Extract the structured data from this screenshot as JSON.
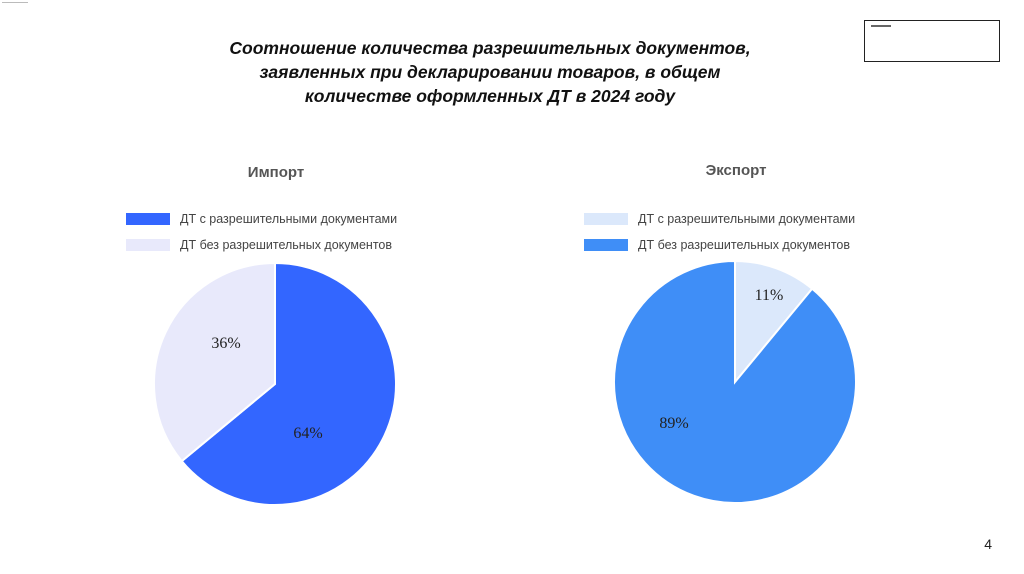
{
  "title_lines": [
    "Соотношение количества разрешительных документов,",
    "заявленных при декларировании товаров, в общем",
    "количестве оформленных ДТ в 2024 году"
  ],
  "page_number": "4",
  "chart_data": [
    {
      "type": "pie",
      "title": "Импорт",
      "legend_position": "top",
      "labels": [
        "ДТ с разрешительными документами",
        "ДТ без разрешительных документов"
      ],
      "values": [
        64,
        36
      ],
      "value_labels": [
        "64%",
        "36%"
      ],
      "colors": [
        "#3366ff",
        "#e8e9fb"
      ]
    },
    {
      "type": "pie",
      "title": "Экспорт",
      "legend_position": "top",
      "labels": [
        "ДТ с разрешительными документами",
        "ДТ без разрешительных документов"
      ],
      "values": [
        11,
        89
      ],
      "value_labels": [
        "11%",
        "89%"
      ],
      "colors": [
        "#dbe8fb",
        "#3f8ef7"
      ]
    }
  ]
}
